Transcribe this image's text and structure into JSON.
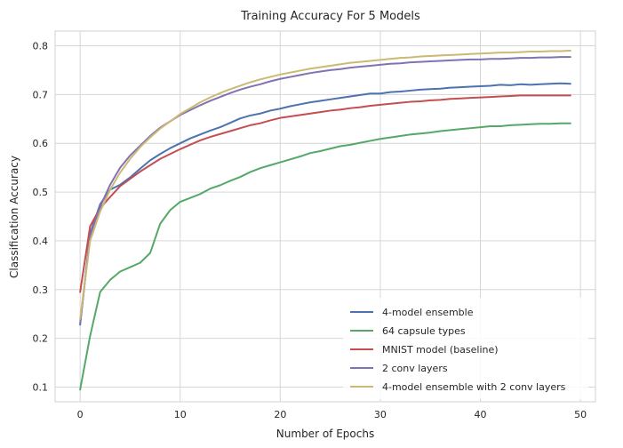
{
  "chart_data": {
    "type": "line",
    "title": "Training Accuracy For 5 Models",
    "xlabel": "Number of Epochs",
    "ylabel": "Classification Accuracy",
    "xlim": [
      -2.5,
      51.5
    ],
    "ylim": [
      0.07,
      0.83
    ],
    "xticks": [
      0,
      10,
      20,
      30,
      40,
      50
    ],
    "yticks": [
      0.1,
      0.2,
      0.3,
      0.4,
      0.5,
      0.6,
      0.7,
      0.8
    ],
    "grid": true,
    "legend_position": "lower-right",
    "x": [
      0,
      1,
      2,
      3,
      4,
      5,
      6,
      7,
      8,
      9,
      10,
      11,
      12,
      13,
      14,
      15,
      16,
      17,
      18,
      19,
      20,
      21,
      22,
      23,
      24,
      25,
      26,
      27,
      28,
      29,
      30,
      31,
      32,
      33,
      34,
      35,
      36,
      37,
      38,
      39,
      40,
      41,
      42,
      43,
      44,
      45,
      46,
      47,
      48,
      49
    ],
    "series": [
      {
        "name": "4-model ensemble",
        "color": "#4c72b0",
        "values": [
          0.228,
          0.415,
          0.475,
          0.505,
          0.515,
          0.53,
          0.548,
          0.565,
          0.578,
          0.59,
          0.6,
          0.61,
          0.618,
          0.626,
          0.633,
          0.642,
          0.651,
          0.657,
          0.661,
          0.667,
          0.671,
          0.676,
          0.68,
          0.684,
          0.687,
          0.69,
          0.693,
          0.696,
          0.699,
          0.702,
          0.702,
          0.705,
          0.706,
          0.708,
          0.71,
          0.711,
          0.712,
          0.714,
          0.715,
          0.716,
          0.717,
          0.718,
          0.72,
          0.719,
          0.721,
          0.72,
          0.721,
          0.722,
          0.723,
          0.722
        ]
      },
      {
        "name": "64 capsule types",
        "color": "#55a868",
        "values": [
          0.095,
          0.205,
          0.295,
          0.32,
          0.337,
          0.346,
          0.355,
          0.375,
          0.435,
          0.463,
          0.48,
          0.488,
          0.496,
          0.507,
          0.514,
          0.523,
          0.531,
          0.541,
          0.549,
          0.555,
          0.561,
          0.567,
          0.573,
          0.58,
          0.584,
          0.589,
          0.594,
          0.597,
          0.601,
          0.605,
          0.609,
          0.612,
          0.615,
          0.618,
          0.62,
          0.622,
          0.625,
          0.627,
          0.629,
          0.631,
          0.633,
          0.635,
          0.635,
          0.637,
          0.638,
          0.639,
          0.64,
          0.64,
          0.641,
          0.641
        ]
      },
      {
        "name": "MNIST model (baseline)",
        "color": "#c44e52",
        "values": [
          0.295,
          0.43,
          0.467,
          0.49,
          0.512,
          0.527,
          0.542,
          0.555,
          0.568,
          0.578,
          0.588,
          0.597,
          0.606,
          0.613,
          0.619,
          0.625,
          0.631,
          0.637,
          0.641,
          0.647,
          0.652,
          0.655,
          0.658,
          0.661,
          0.664,
          0.667,
          0.669,
          0.672,
          0.674,
          0.677,
          0.679,
          0.681,
          0.683,
          0.685,
          0.686,
          0.688,
          0.689,
          0.691,
          0.692,
          0.693,
          0.694,
          0.695,
          0.696,
          0.697,
          0.698,
          0.698,
          0.698,
          0.698,
          0.698,
          0.698
        ]
      },
      {
        "name": "2 conv layers",
        "color": "#8172b2",
        "values": [
          0.23,
          0.41,
          0.47,
          0.515,
          0.55,
          0.575,
          0.595,
          0.615,
          0.632,
          0.645,
          0.658,
          0.668,
          0.678,
          0.687,
          0.695,
          0.703,
          0.71,
          0.716,
          0.721,
          0.727,
          0.732,
          0.736,
          0.74,
          0.744,
          0.747,
          0.75,
          0.752,
          0.755,
          0.757,
          0.759,
          0.761,
          0.763,
          0.764,
          0.766,
          0.767,
          0.768,
          0.769,
          0.77,
          0.771,
          0.772,
          0.772,
          0.773,
          0.773,
          0.774,
          0.775,
          0.775,
          0.776,
          0.776,
          0.777,
          0.777
        ]
      },
      {
        "name": "4-model ensemble with 2 conv layers",
        "color": "#ccb974",
        "values": [
          0.24,
          0.4,
          0.46,
          0.505,
          0.54,
          0.568,
          0.592,
          0.612,
          0.63,
          0.645,
          0.66,
          0.672,
          0.684,
          0.694,
          0.703,
          0.711,
          0.718,
          0.725,
          0.731,
          0.736,
          0.741,
          0.745,
          0.749,
          0.753,
          0.756,
          0.759,
          0.762,
          0.765,
          0.767,
          0.769,
          0.771,
          0.773,
          0.775,
          0.776,
          0.778,
          0.779,
          0.78,
          0.781,
          0.782,
          0.783,
          0.784,
          0.785,
          0.786,
          0.786,
          0.787,
          0.788,
          0.788,
          0.789,
          0.789,
          0.79
        ]
      }
    ]
  }
}
